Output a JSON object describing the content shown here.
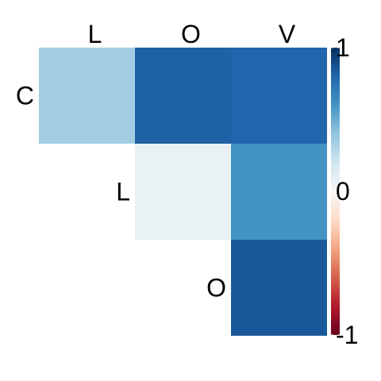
{
  "chart_data": {
    "type": "heatmap",
    "layout": "upper-triangle",
    "column_labels": [
      "L",
      "O",
      "V"
    ],
    "row_labels": [
      "C",
      "L",
      "O"
    ],
    "cells": [
      {
        "row": "C",
        "col": "L",
        "value": 0.35
      },
      {
        "row": "C",
        "col": "O",
        "value": 0.82
      },
      {
        "row": "C",
        "col": "V",
        "value": 0.8
      },
      {
        "row": "L",
        "col": "O",
        "value": 0.07
      },
      {
        "row": "L",
        "col": "V",
        "value": 0.6
      },
      {
        "row": "O",
        "col": "V",
        "value": 0.85
      }
    ],
    "colorbar": {
      "min": -1,
      "max": 1,
      "tick_labels": [
        "1",
        "0",
        "-1"
      ],
      "tick_values": [
        1,
        0,
        -1
      ],
      "palette": [
        "#67001F",
        "#B2182B",
        "#D6604D",
        "#F4A582",
        "#FDDBC7",
        "#F7F7F7",
        "#D1E5F0",
        "#92C5DE",
        "#4393C3",
        "#2166AC",
        "#053061"
      ]
    }
  }
}
